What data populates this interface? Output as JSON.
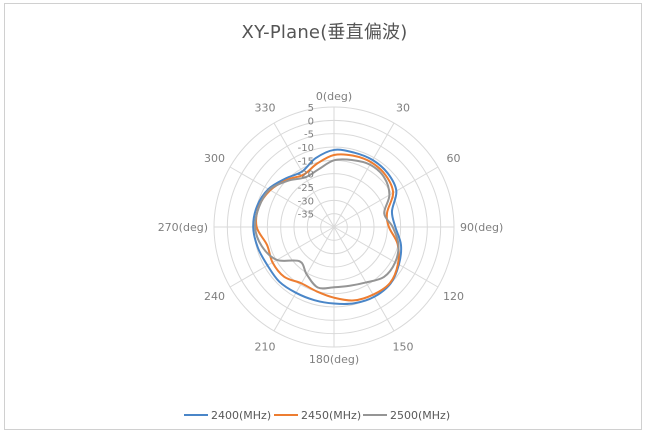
{
  "chart_data": {
    "type": "polar-line",
    "title": "XY-Plane(垂直偏波)",
    "radial_ticks": [
      5,
      0,
      -5,
      -10,
      -15,
      -20,
      -25,
      -30,
      -35
    ],
    "r_range": [
      -40,
      5
    ],
    "grid": true,
    "legend_position": "bottom",
    "angular_labels": [
      {
        "angle": 0,
        "label": "0(deg)"
      },
      {
        "angle": 30,
        "label": "30"
      },
      {
        "angle": 60,
        "label": "60"
      },
      {
        "angle": 90,
        "label": "90(deg)"
      },
      {
        "angle": 120,
        "label": "120"
      },
      {
        "angle": 150,
        "label": "150"
      },
      {
        "angle": 180,
        "label": "180(deg)"
      },
      {
        "angle": 210,
        "label": "210"
      },
      {
        "angle": 240,
        "label": "240"
      },
      {
        "angle": 270,
        "label": "270(deg)"
      },
      {
        "angle": 300,
        "label": "300"
      },
      {
        "angle": 330,
        "label": "330"
      }
    ],
    "angles": [
      0,
      15,
      30,
      45,
      60,
      75,
      90,
      105,
      120,
      135,
      150,
      165,
      180,
      195,
      210,
      225,
      240,
      255,
      270,
      285,
      300,
      315,
      330,
      345
    ],
    "series": [
      {
        "name": "2400(MHz)",
        "color": "#4a86c8",
        "values": [
          -11.1,
          -11.1,
          -11.0,
          -11.5,
          -13.0,
          -17.5,
          -17.0,
          -14.0,
          -11.9,
          -10.0,
          -9.8,
          -10.4,
          -11.3,
          -11.6,
          -11.5,
          -11.0,
          -11.2,
          -10.4,
          -9.7,
          -10.1,
          -11.6,
          -14.3,
          -16.0,
          -13.3
        ]
      },
      {
        "name": "2450(MHz)",
        "color": "#ed7d31",
        "values": [
          -13.0,
          -12.3,
          -12.0,
          -12.6,
          -14.4,
          -19.4,
          -19.4,
          -15.3,
          -12.3,
          -10.3,
          -10.7,
          -11.5,
          -13.5,
          -15.0,
          -15.6,
          -13.6,
          -13.4,
          -14.0,
          -11.0,
          -10.8,
          -12.4,
          -15.0,
          -17.3,
          -15.4
        ]
      },
      {
        "name": "2500(MHz)",
        "color": "#959595",
        "values": [
          -15.0,
          -14.0,
          -13.0,
          -13.5,
          -16.0,
          -20.5,
          -18.0,
          -15.0,
          -13.5,
          -13.5,
          -16.0,
          -17.2,
          -17.4,
          -16.5,
          -19.5,
          -21.8,
          -15.3,
          -12.0,
          -10.4,
          -10.9,
          -12.0,
          -15.5,
          -18.5,
          -17.6
        ]
      }
    ]
  }
}
